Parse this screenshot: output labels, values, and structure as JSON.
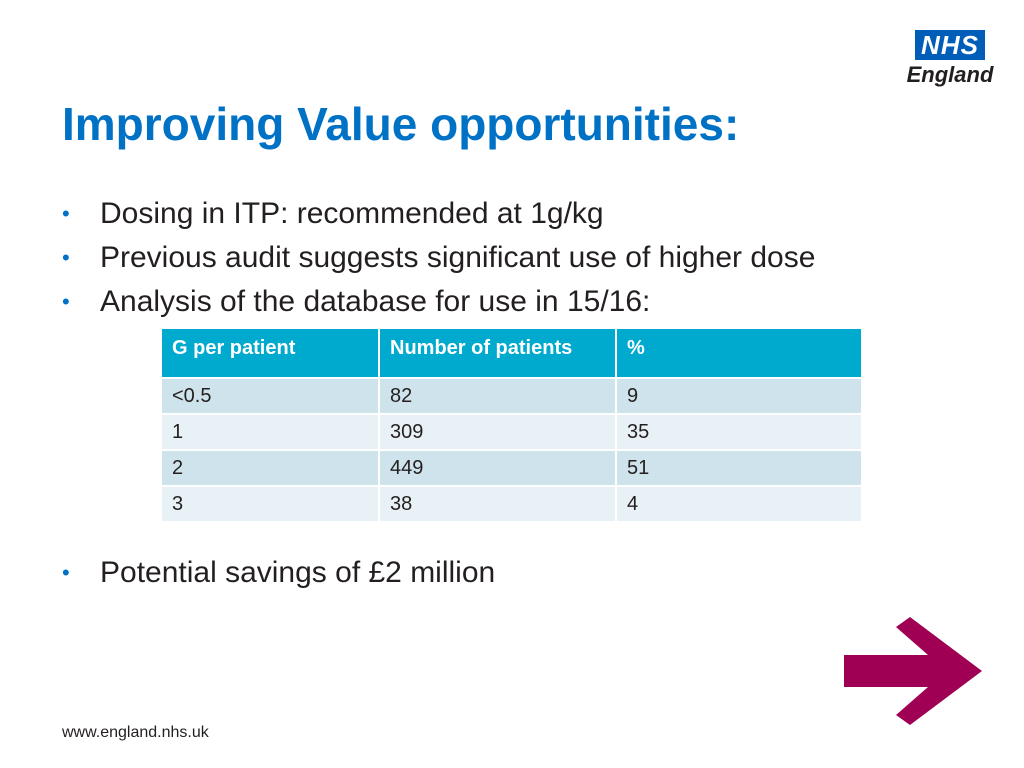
{
  "logo": {
    "box_text": "NHS",
    "sub_text": "England"
  },
  "title": "Improving Value opportunities:",
  "bullets": [
    "Dosing in ITP: recommended at 1g/kg",
    "Previous audit suggests significant use of higher dose",
    "Analysis of the database for use in 15/16:"
  ],
  "table": {
    "headers": [
      "G per patient",
      "Number of patients",
      "%"
    ],
    "rows": [
      [
        "<0.5",
        "82",
        "9"
      ],
      [
        "1",
        "309",
        "35"
      ],
      [
        "2",
        "449",
        "51"
      ],
      [
        "3",
        "38",
        "4"
      ]
    ]
  },
  "bullets_after": [
    "Potential savings of £2 million"
  ],
  "footer": "www.england.nhs.uk",
  "colors": {
    "title": "#0072c6",
    "table_header": "#00a9ce",
    "arrow": "#a00054",
    "logo": "#005eb8"
  },
  "icons": {
    "arrow": "right-arrow-icon",
    "bullet": "bullet-dot"
  }
}
